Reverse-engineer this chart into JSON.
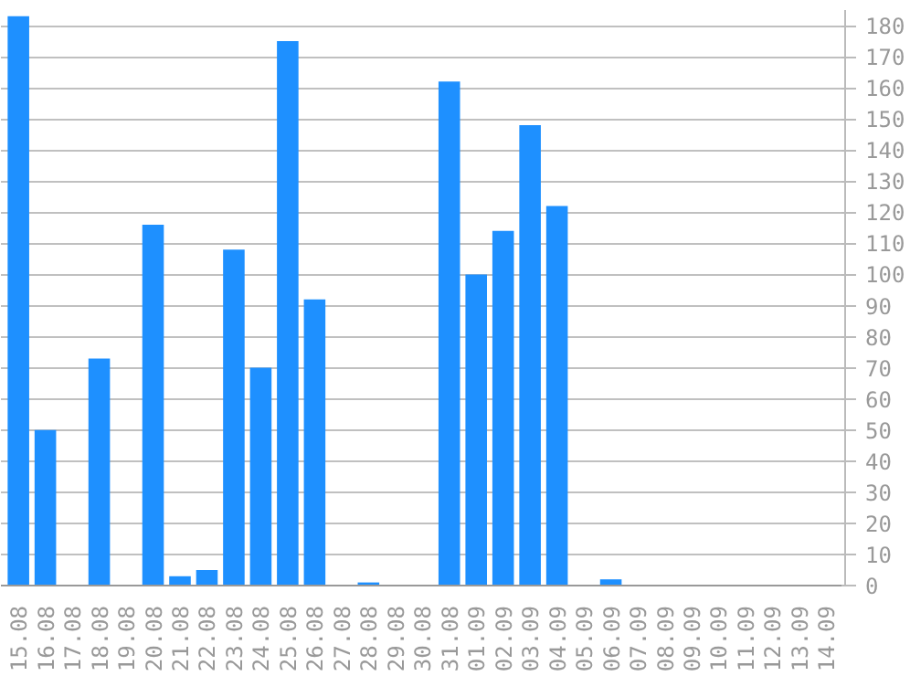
{
  "chart_data": {
    "type": "bar",
    "categories": [
      "15.08",
      "16.08",
      "17.08",
      "18.08",
      "19.08",
      "20.08",
      "21.08",
      "22.08",
      "23.08",
      "24.08",
      "25.08",
      "26.08",
      "27.08",
      "28.08",
      "29.08",
      "30.08",
      "31.08",
      "01.09",
      "02.09",
      "03.09",
      "04.09",
      "05.09",
      "06.09",
      "07.09",
      "08.09",
      "09.09",
      "10.09",
      "11.09",
      "12.09",
      "13.09",
      "14.09"
    ],
    "values": [
      183,
      50,
      0,
      73,
      0,
      116,
      3,
      5,
      108,
      70,
      175,
      92,
      0,
      1,
      0,
      0,
      162,
      100,
      114,
      148,
      122,
      0,
      2,
      0,
      0,
      0,
      0,
      0,
      0,
      0,
      0
    ],
    "color": "#1e90ff",
    "ylim": [
      0,
      185
    ],
    "yticks": [
      0,
      10,
      20,
      30,
      40,
      50,
      60,
      70,
      80,
      90,
      100,
      110,
      120,
      130,
      140,
      150,
      160,
      170,
      180
    ],
    "grid": "y"
  }
}
